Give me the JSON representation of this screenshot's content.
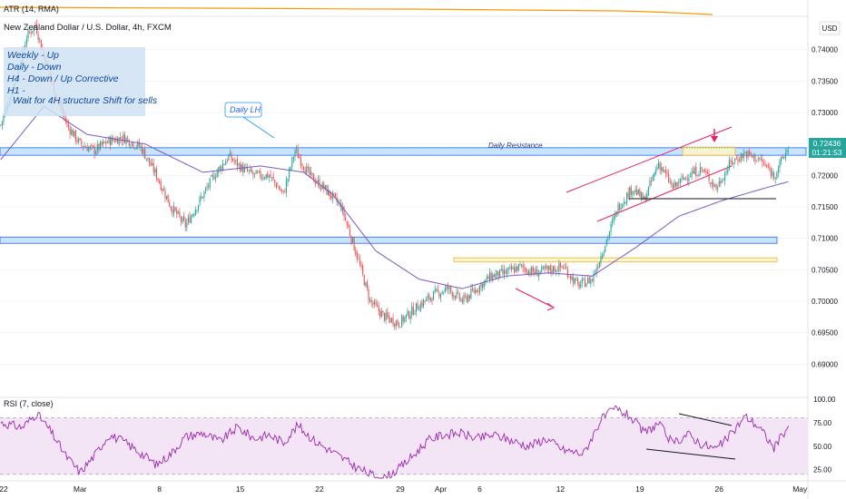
{
  "header": {
    "atr_label": "ATR (14, RMA)",
    "symbol_title": "New Zealand Dollar / U.S. Dollar, 4h, FXCM",
    "currency": "USD"
  },
  "note": {
    "lines": [
      "Weekly - Up",
      "Daily     - Down",
      "H4       - Down / Up Corrective",
      "H1       -"
    ],
    "action": "Wait for 4H structure Shift for sells"
  },
  "callout": "Daily LH",
  "zone_label": "Daily Resistance",
  "price_badge": {
    "price": "0.72436",
    "countdown": "01:21:53"
  },
  "rsi": {
    "label": "RSI (7, close)"
  },
  "colors": {
    "up": "#26a69a",
    "down": "#ef5350",
    "ma": "#7e57c2",
    "rsi_line": "#9c27b0",
    "rsi_band": "#f3e5f5",
    "atr": "#ff9800",
    "zone_blue": "#bbdefb",
    "zone_yellow": "#fff9c4",
    "channel": "#e91e63",
    "badge": "#26a69a"
  },
  "chart_data": [
    {
      "type": "candlestick",
      "title": "New Zealand Dollar / U.S. Dollar, 4h, FXCM",
      "ylim": [
        0.685,
        0.745
      ],
      "y_ticks": [
        "0.74000",
        "0.73500",
        "0.73000",
        "0.72500",
        "0.72000",
        "0.71500",
        "0.71000",
        "0.70500",
        "0.70000",
        "0.69500",
        "0.69000"
      ],
      "y_tick_values": [
        0.74,
        0.735,
        0.73,
        0.725,
        0.72,
        0.715,
        0.71,
        0.705,
        0.7,
        0.695,
        0.69
      ],
      "x_ticks": [
        "22",
        "Mar",
        "8",
        "15",
        "22",
        "29",
        "Apr",
        "6",
        "12",
        "19",
        "26",
        "May"
      ],
      "x_tick_index": [
        0,
        55,
        110,
        166,
        221,
        277,
        305,
        332,
        388,
        443,
        498,
        554
      ],
      "close_anchors": [
        [
          0,
          0.728
        ],
        [
          10,
          0.735
        ],
        [
          18,
          0.742
        ],
        [
          24,
          0.744
        ],
        [
          30,
          0.739
        ],
        [
          38,
          0.733
        ],
        [
          46,
          0.728
        ],
        [
          55,
          0.725
        ],
        [
          65,
          0.724
        ],
        [
          75,
          0.7255
        ],
        [
          85,
          0.726
        ],
        [
          97,
          0.7245
        ],
        [
          108,
          0.72
        ],
        [
          118,
          0.715
        ],
        [
          128,
          0.712
        ],
        [
          138,
          0.716
        ],
        [
          148,
          0.72
        ],
        [
          158,
          0.723
        ],
        [
          168,
          0.721
        ],
        [
          176,
          0.72
        ],
        [
          186,
          0.72
        ],
        [
          196,
          0.717
        ],
        [
          204,
          0.724
        ],
        [
          214,
          0.72
        ],
        [
          224,
          0.718
        ],
        [
          236,
          0.715
        ],
        [
          246,
          0.708
        ],
        [
          256,
          0.7
        ],
        [
          266,
          0.6975
        ],
        [
          276,
          0.6965
        ],
        [
          288,
          0.699
        ],
        [
          300,
          0.701
        ],
        [
          310,
          0.702
        ],
        [
          320,
          0.7
        ],
        [
          330,
          0.702
        ],
        [
          340,
          0.704
        ],
        [
          350,
          0.7045
        ],
        [
          360,
          0.7055
        ],
        [
          370,
          0.7045
        ],
        [
          380,
          0.705
        ],
        [
          390,
          0.7055
        ],
        [
          400,
          0.7025
        ],
        [
          410,
          0.7035
        ],
        [
          418,
          0.7085
        ],
        [
          428,
          0.715
        ],
        [
          438,
          0.718
        ],
        [
          446,
          0.716
        ],
        [
          456,
          0.722
        ],
        [
          466,
          0.718
        ],
        [
          476,
          0.72
        ],
        [
          486,
          0.721
        ],
        [
          496,
          0.718
        ],
        [
          506,
          0.722
        ],
        [
          516,
          0.7235
        ],
        [
          526,
          0.7225
        ],
        [
          536,
          0.72
        ],
        [
          546,
          0.7244
        ]
      ],
      "moving_average": [
        [
          0,
          0.7225
        ],
        [
          30,
          0.731
        ],
        [
          60,
          0.7265
        ],
        [
          100,
          0.725
        ],
        [
          140,
          0.7205
        ],
        [
          180,
          0.7215
        ],
        [
          210,
          0.7205
        ],
        [
          230,
          0.717
        ],
        [
          260,
          0.708
        ],
        [
          290,
          0.7035
        ],
        [
          320,
          0.702
        ],
        [
          350,
          0.704
        ],
        [
          380,
          0.7045
        ],
        [
          410,
          0.704
        ],
        [
          440,
          0.7085
        ],
        [
          470,
          0.7135
        ],
        [
          500,
          0.716
        ],
        [
          530,
          0.718
        ],
        [
          546,
          0.719
        ]
      ],
      "resistance_zone": [
        0.7244,
        0.7232
      ],
      "support_zone": [
        0.7102,
        0.7092
      ],
      "yellow_zone_mid": [
        0.7069,
        0.7063
      ],
      "yellow_zone_top": [
        0.7245,
        0.7232
      ],
      "last_price": 0.72436
    },
    {
      "type": "line",
      "title": "RSI (7, close)",
      "ylim": [
        15,
        100
      ],
      "y_ticks": [
        "100.00",
        "75.00",
        "50.00",
        "25.00"
      ],
      "y_tick_values": [
        100,
        75,
        50,
        25
      ],
      "band": [
        20,
        80
      ],
      "anchors": [
        [
          0,
          75
        ],
        [
          15,
          70
        ],
        [
          25,
          85
        ],
        [
          35,
          65
        ],
        [
          45,
          40
        ],
        [
          55,
          22
        ],
        [
          65,
          40
        ],
        [
          75,
          62
        ],
        [
          85,
          55
        ],
        [
          95,
          45
        ],
        [
          108,
          30
        ],
        [
          118,
          42
        ],
        [
          128,
          60
        ],
        [
          140,
          64
        ],
        [
          152,
          55
        ],
        [
          164,
          70
        ],
        [
          176,
          58
        ],
        [
          186,
          62
        ],
        [
          196,
          54
        ],
        [
          206,
          72
        ],
        [
          218,
          55
        ],
        [
          232,
          42
        ],
        [
          246,
          28
        ],
        [
          256,
          20
        ],
        [
          266,
          16
        ],
        [
          276,
          26
        ],
        [
          286,
          40
        ],
        [
          296,
          56
        ],
        [
          306,
          62
        ],
        [
          318,
          64
        ],
        [
          330,
          58
        ],
        [
          342,
          62
        ],
        [
          354,
          56
        ],
        [
          366,
          50
        ],
        [
          378,
          58
        ],
        [
          390,
          46
        ],
        [
          404,
          42
        ],
        [
          416,
          78
        ],
        [
          426,
          90
        ],
        [
          436,
          82
        ],
        [
          446,
          64
        ],
        [
          456,
          74
        ],
        [
          466,
          52
        ],
        [
          476,
          63
        ],
        [
          486,
          52
        ],
        [
          496,
          47
        ],
        [
          506,
          62
        ],
        [
          516,
          82
        ],
        [
          526,
          70
        ],
        [
          536,
          48
        ],
        [
          546,
          72
        ]
      ]
    }
  ]
}
